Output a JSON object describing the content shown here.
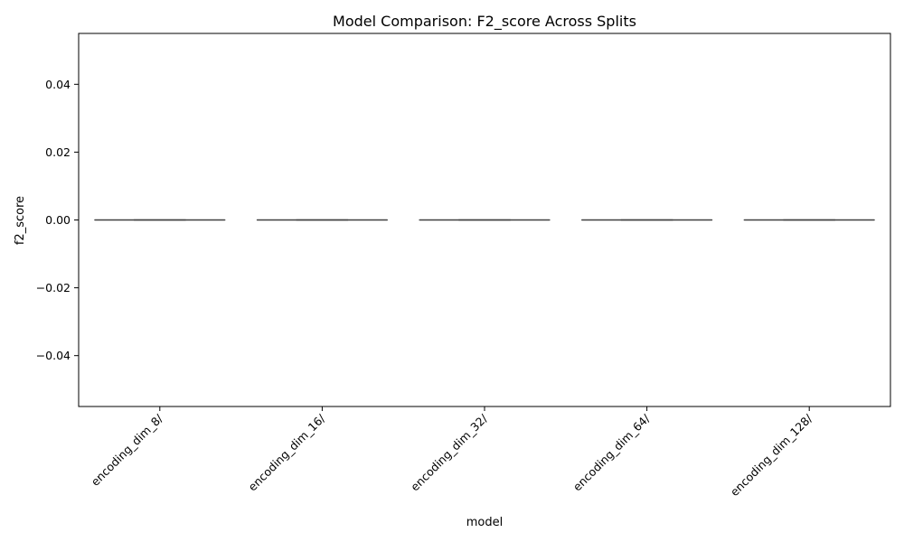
{
  "chart_data": {
    "type": "box",
    "title": "Model Comparison: F2_score Across Splits",
    "xlabel": "model",
    "ylabel": "f2_score",
    "ylim": [
      -0.055,
      0.055
    ],
    "yticks": [
      -0.04,
      -0.02,
      0.0,
      0.02,
      0.04
    ],
    "ytick_labels": [
      "−0.04",
      "−0.02",
      "0.00",
      "0.02",
      "0.04"
    ],
    "categories": [
      "encoding_dim_8/",
      "encoding_dim_16/",
      "encoding_dim_32/",
      "encoding_dim_64/",
      "encoding_dim_128/"
    ],
    "boxes": [
      {
        "min": 0,
        "q1": 0,
        "median": 0,
        "q3": 0,
        "max": 0
      },
      {
        "min": 0,
        "q1": 0,
        "median": 0,
        "q3": 0,
        "max": 0
      },
      {
        "min": 0,
        "q1": 0,
        "median": 0,
        "q3": 0,
        "max": 0
      },
      {
        "min": 0,
        "q1": 0,
        "median": 0,
        "q3": 0,
        "max": 0
      },
      {
        "min": 0,
        "q1": 0,
        "median": 0,
        "q3": 0,
        "max": 0
      }
    ],
    "grid": false,
    "line_color": "#3f3f3f"
  }
}
